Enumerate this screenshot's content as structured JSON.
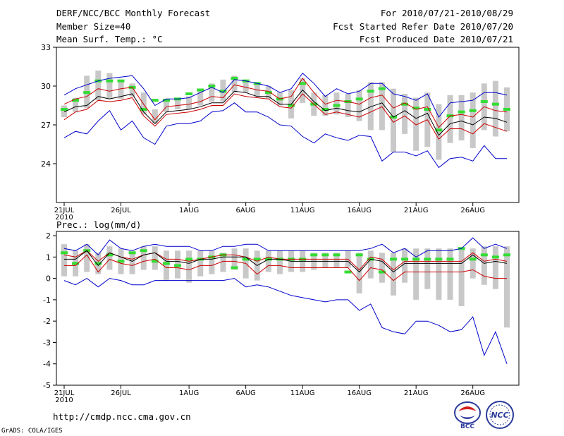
{
  "header": {
    "title": "DERF/NCC/BCC Monthly Forecast",
    "members": "Member Size=40",
    "variable": "Mean Surf. Temp.: °C",
    "period": "For 2010/07/21-2010/08/29",
    "start_date": "Fcst Started Refer Date 2010/07/20",
    "produced": "Fcst Produced Date 2010/07/21"
  },
  "footer": {
    "url": "http://cmdp.ncc.cma.gov.cn",
    "grads": "GrADS: COLA/IGES",
    "logo_left_text": "BCC",
    "logo_right_text": "NCC"
  },
  "colors": {
    "bar": "#c8c8c8",
    "green": "#33dd33",
    "blue": "#0000cc",
    "red": "#cc0000",
    "black": "#000000"
  },
  "chart_data": [
    {
      "type": "line",
      "title": "Mean Surf. Temp.: °C",
      "x_ticks": [
        "21JUL",
        "26JUL",
        "1AUG",
        "6AUG",
        "11AUG",
        "16AUG",
        "21AUG",
        "26AUG"
      ],
      "x_tick_days": [
        1,
        6,
        12,
        17,
        22,
        27,
        32,
        37
      ],
      "x_sublabel": "2010",
      "ylim": [
        21,
        33
      ],
      "yticks": [
        24,
        27,
        30,
        33
      ],
      "series": [
        {
          "name": "max",
          "color": "blue",
          "values": [
            29.3,
            29.8,
            30.1,
            30.4,
            30.6,
            30.7,
            30.8,
            29.8,
            28.5,
            29.0,
            29.0,
            29.1,
            29.5,
            29.9,
            29.5,
            30.5,
            30.4,
            30.2,
            30.0,
            29.5,
            29.8,
            31.0,
            30.2,
            29.2,
            29.8,
            29.4,
            29.6,
            30.2,
            30.2,
            29.4,
            29.2,
            28.9,
            29.4,
            27.6,
            28.7,
            28.8,
            28.9,
            29.5,
            29.5,
            29.3
          ]
        },
        {
          "name": "upper",
          "color": "red",
          "values": [
            28.6,
            29.0,
            29.2,
            29.8,
            29.6,
            29.8,
            29.9,
            28.6,
            27.4,
            28.4,
            28.5,
            28.6,
            28.8,
            29.2,
            29.1,
            30.1,
            29.9,
            29.7,
            29.6,
            29.0,
            29.2,
            30.6,
            29.5,
            28.6,
            28.9,
            28.8,
            28.6,
            29.1,
            29.3,
            28.3,
            28.7,
            28.2,
            28.4,
            26.8,
            27.7,
            27.8,
            27.6,
            28.4,
            28.1,
            28.0
          ]
        },
        {
          "name": "mean",
          "color": "black",
          "values": [
            28.0,
            28.4,
            28.5,
            29.2,
            29.0,
            29.2,
            29.4,
            28.0,
            27.1,
            28.0,
            28.1,
            28.2,
            28.4,
            28.7,
            28.7,
            29.6,
            29.5,
            29.2,
            29.2,
            28.6,
            28.6,
            29.7,
            28.8,
            28.1,
            28.3,
            28.1,
            28.0,
            28.4,
            28.7,
            27.6,
            28.1,
            27.5,
            27.9,
            26.2,
            27.1,
            27.3,
            27.0,
            27.6,
            27.5,
            27.2
          ]
        },
        {
          "name": "lower",
          "color": "red",
          "values": [
            27.4,
            28.0,
            28.2,
            28.9,
            28.8,
            28.9,
            29.1,
            27.7,
            26.9,
            27.8,
            27.9,
            28.0,
            28.2,
            28.5,
            28.5,
            29.4,
            29.2,
            29.1,
            29.0,
            28.4,
            28.3,
            29.4,
            28.6,
            27.8,
            28.0,
            27.8,
            27.6,
            28.0,
            28.4,
            27.2,
            27.7,
            27.0,
            27.4,
            25.9,
            26.7,
            26.7,
            26.3,
            27.1,
            26.8,
            26.5
          ]
        },
        {
          "name": "min",
          "color": "blue",
          "values": [
            26.0,
            26.5,
            26.3,
            27.3,
            28.1,
            26.6,
            27.3,
            26.0,
            25.5,
            26.9,
            27.1,
            27.1,
            27.3,
            28.0,
            28.1,
            28.7,
            28.0,
            28.0,
            27.6,
            27.0,
            26.9,
            26.1,
            25.6,
            26.3,
            26.0,
            25.8,
            26.2,
            26.1,
            24.2,
            24.9,
            24.9,
            24.6,
            25.0,
            23.7,
            24.4,
            24.5,
            24.2,
            25.4,
            24.4,
            24.4
          ]
        }
      ],
      "bars": {
        "low": [
          27.6,
          28.0,
          28.3,
          28.9,
          29.0,
          29.0,
          29.2,
          27.8,
          27.1,
          28.0,
          28.2,
          28.2,
          28.5,
          28.8,
          28.8,
          29.5,
          29.5,
          29.2,
          29.0,
          28.5,
          27.5,
          28.7,
          27.7,
          27.7,
          27.8,
          27.6,
          27.3,
          26.6,
          26.6,
          24.9,
          26.3,
          25.0,
          25.3,
          24.3,
          25.6,
          25.8,
          25.2,
          26.6,
          26.1,
          26.5
        ],
        "high": [
          28.5,
          29.1,
          30.8,
          31.2,
          31.0,
          30.4,
          30.2,
          29.5,
          28.2,
          28.9,
          29.0,
          29.2,
          29.8,
          30.2,
          30.5,
          30.8,
          30.3,
          30.2,
          30.0,
          29.5,
          29.7,
          30.6,
          29.5,
          29.3,
          29.5,
          29.4,
          29.7,
          30.3,
          30.3,
          29.8,
          29.4,
          29.1,
          29.5,
          28.6,
          29.3,
          29.3,
          29.5,
          30.2,
          30.4,
          29.9
        ]
      },
      "green_marks": [
        28.2,
        28.9,
        29.5,
        30.4,
        30.4,
        30.4,
        29.9,
        28.2,
        28.9,
        28.9,
        29.0,
        29.4,
        29.7,
        30.0,
        29.6,
        30.6,
        30.4,
        30.2,
        29.5,
        29.0,
        28.5,
        30.2,
        28.6,
        28.2,
        28.5,
        28.8,
        29.0,
        29.6,
        29.8,
        27.6,
        28.6,
        28.3,
        28.2,
        26.6,
        27.7,
        28.0,
        28.1,
        28.8,
        28.6,
        28.2
      ]
    },
    {
      "type": "line",
      "title": "Prec.: log(mm/d)",
      "x_ticks": [
        "21JUL",
        "26JUL",
        "1AUG",
        "6AUG",
        "11AUG",
        "16AUG",
        "21AUG",
        "26AUG"
      ],
      "x_tick_days": [
        1,
        6,
        12,
        17,
        22,
        27,
        32,
        37
      ],
      "x_sublabel": "2010",
      "ylim": [
        -5,
        2.2
      ],
      "yticks": [
        -5,
        -4,
        -3,
        -2,
        -1,
        0,
        1,
        2
      ],
      "series": [
        {
          "name": "max",
          "color": "blue",
          "values": [
            1.4,
            1.3,
            1.6,
            1.1,
            1.8,
            1.4,
            1.3,
            1.5,
            1.6,
            1.5,
            1.5,
            1.5,
            1.3,
            1.3,
            1.5,
            1.5,
            1.6,
            1.6,
            1.3,
            1.3,
            1.3,
            1.3,
            1.3,
            1.3,
            1.3,
            1.3,
            1.3,
            1.4,
            1.6,
            1.2,
            1.4,
            1.0,
            1.3,
            1.3,
            1.3,
            1.4,
            1.9,
            1.4,
            1.6,
            1.4
          ]
        },
        {
          "name": "upper",
          "color": "red",
          "values": [
            1.1,
            1.0,
            1.3,
            0.8,
            1.2,
            1.0,
            0.9,
            1.1,
            1.2,
            0.9,
            0.9,
            0.8,
            0.9,
            1.0,
            1.1,
            1.1,
            1.0,
            0.8,
            1.0,
            0.9,
            0.9,
            0.9,
            0.9,
            0.9,
            0.9,
            0.9,
            0.4,
            1.0,
            0.9,
            0.4,
            0.8,
            0.8,
            0.8,
            0.8,
            0.8,
            0.8,
            1.2,
            0.8,
            0.9,
            0.8
          ]
        },
        {
          "name": "mean",
          "color": "black",
          "values": [
            0.9,
            0.9,
            1.3,
            0.6,
            1.2,
            1.0,
            0.8,
            1.1,
            1.2,
            0.8,
            0.8,
            0.7,
            0.9,
            0.9,
            1.0,
            1.0,
            1.0,
            0.6,
            0.9,
            0.9,
            0.8,
            0.8,
            0.8,
            0.8,
            0.8,
            0.8,
            0.3,
            0.9,
            0.8,
            0.3,
            0.7,
            0.7,
            0.7,
            0.7,
            0.7,
            0.7,
            1.1,
            0.7,
            0.8,
            0.7
          ]
        },
        {
          "name": "lower",
          "color": "red",
          "values": [
            0.6,
            0.6,
            1.1,
            0.3,
            0.9,
            0.7,
            0.6,
            0.8,
            0.9,
            0.5,
            0.5,
            0.4,
            0.6,
            0.6,
            0.8,
            0.8,
            0.7,
            0.2,
            0.6,
            0.6,
            0.5,
            0.5,
            0.5,
            0.5,
            0.5,
            0.5,
            -0.1,
            0.5,
            0.4,
            -0.1,
            0.3,
            0.3,
            0.3,
            0.3,
            0.3,
            0.3,
            0.4,
            0.1,
            0.0,
            0.0
          ]
        },
        {
          "name": "min",
          "color": "blue",
          "values": [
            -0.1,
            -0.3,
            0.0,
            -0.4,
            0.0,
            -0.1,
            -0.3,
            -0.3,
            -0.1,
            -0.1,
            -0.1,
            -0.1,
            -0.1,
            -0.1,
            -0.1,
            0.0,
            -0.4,
            -0.3,
            -0.4,
            -0.6,
            -0.8,
            -0.9,
            -1.0,
            -1.1,
            -1.0,
            -1.0,
            -1.5,
            -1.2,
            -2.3,
            -2.5,
            -2.6,
            -2.0,
            -2.0,
            -2.2,
            -2.5,
            -2.4,
            -1.8,
            -3.6,
            -2.5,
            -4.0
          ]
        },
        {
          "name": "min_tail",
          "color": "blue",
          "values": [
            -4.0
          ],
          "x_days": [
            40
          ]
        }
      ],
      "bars": {
        "low": [
          0.1,
          0.1,
          0.3,
          0.2,
          0.4,
          0.2,
          0.2,
          0.4,
          0.4,
          -0.1,
          0.0,
          -0.2,
          0.1,
          0.2,
          0.3,
          0.4,
          0.0,
          -0.1,
          0.3,
          0.2,
          0.3,
          0.3,
          0.4,
          0.5,
          0.5,
          0.5,
          -0.7,
          0.0,
          -0.2,
          -0.8,
          -0.2,
          -1.0,
          -0.5,
          -1.0,
          -1.0,
          -1.3,
          0.0,
          -0.3,
          -0.5,
          -2.3
        ],
        "high": [
          1.6,
          1.3,
          1.6,
          1.2,
          1.5,
          1.4,
          1.2,
          1.5,
          1.5,
          1.3,
          1.3,
          1.3,
          1.3,
          1.3,
          1.2,
          1.4,
          1.4,
          1.3,
          1.3,
          1.3,
          1.3,
          1.3,
          1.2,
          1.2,
          1.2,
          1.3,
          1.2,
          1.3,
          1.2,
          1.2,
          1.4,
          1.4,
          1.4,
          1.4,
          1.4,
          1.4,
          1.4,
          1.5,
          1.5,
          1.5
        ]
      },
      "green_marks": [
        1.2,
        0.7,
        1.3,
        0.7,
        1.1,
        0.8,
        1.2,
        1.3,
        0.8,
        0.7,
        0.6,
        0.9,
        0.9,
        1.0,
        1.1,
        0.5,
        0.9,
        0.9,
        0.9,
        0.9,
        0.9,
        0.9,
        1.1,
        1.1,
        1.1,
        0.3,
        1.1,
        0.9,
        0.3,
        0.9,
        0.9,
        0.9,
        0.9,
        0.9,
        0.9,
        1.4,
        0.9,
        1.1,
        1.0,
        1.1
      ]
    }
  ]
}
